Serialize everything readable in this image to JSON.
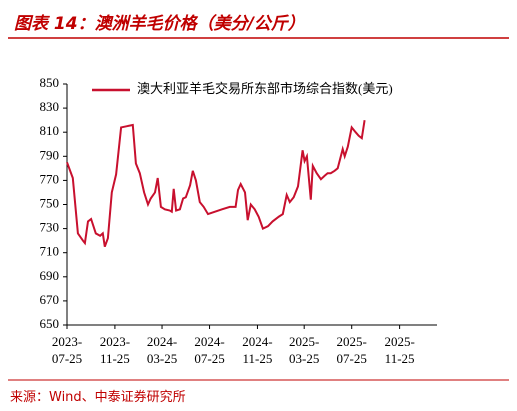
{
  "title": "图表 14：澳洲羊毛价格（美分/公斤）",
  "source": "来源：Wind、中泰证券研究所",
  "chart_data": {
    "type": "line",
    "x": [
      "2023-07-25",
      "2023-08-09",
      "2023-08-22",
      "2023-09-04",
      "2023-09-09",
      "2023-09-17",
      "2023-09-25",
      "2023-10-07",
      "2023-10-18",
      "2023-10-25",
      "2023-10-30",
      "2023-11-07",
      "2023-11-17",
      "2023-11-28",
      "2023-12-11",
      "2023-12-26",
      "2024-01-10",
      "2024-01-18",
      "2024-01-28",
      "2024-02-08",
      "2024-02-18",
      "2024-02-25",
      "2024-03-07",
      "2024-03-14",
      "2024-03-22",
      "2024-04-01",
      "2024-04-14",
      "2024-04-19",
      "2024-04-24",
      "2024-04-30",
      "2024-05-10",
      "2024-05-18",
      "2024-05-25",
      "2024-06-05",
      "2024-06-12",
      "2024-06-20",
      "2024-06-30",
      "2024-07-10",
      "2024-07-21",
      "2024-08-08",
      "2024-08-26",
      "2024-09-15",
      "2024-09-30",
      "2024-10-06",
      "2024-10-13",
      "2024-10-24",
      "2024-10-31",
      "2024-11-08",
      "2024-11-18",
      "2024-11-28",
      "2024-12-09",
      "2024-12-22",
      "2025-01-03",
      "2025-01-19",
      "2025-01-29",
      "2025-02-08",
      "2025-02-16",
      "2025-02-26",
      "2025-03-09",
      "2025-03-21",
      "2025-03-26",
      "2025-04-01",
      "2025-04-11",
      "2025-04-16",
      "2025-04-26",
      "2025-05-07",
      "2025-05-17",
      "2025-05-24",
      "2025-06-01",
      "2025-06-11",
      "2025-06-19",
      "2025-07-02",
      "2025-07-07",
      "2025-07-15",
      "2025-07-25",
      "2025-08-04",
      "2025-08-12",
      "2025-08-20",
      "2025-08-27"
    ],
    "series": [
      {
        "name": "澳大利亚羊毛交易所东部市场综合指数(美元)",
        "color": "#c8102e",
        "values": [
          785,
          772,
          726,
          720,
          718,
          736,
          738,
          726,
          724,
          726,
          715,
          722,
          760,
          775,
          814,
          815,
          816,
          784,
          776,
          760,
          750,
          755,
          760,
          772,
          748,
          746,
          745,
          744,
          763,
          745,
          746,
          755,
          756,
          766,
          778,
          770,
          752,
          748,
          742,
          744,
          746,
          748,
          748,
          762,
          767,
          760,
          737,
          750,
          746,
          740,
          730,
          732,
          736,
          740,
          742,
          758,
          752,
          756,
          765,
          795,
          786,
          790,
          754,
          782,
          776,
          771,
          774,
          776,
          776,
          778,
          780,
          796,
          790,
          798,
          814,
          810,
          807,
          805,
          820
        ]
      }
    ],
    "xlim": [
      "2023-07-25",
      "2026-03-01"
    ],
    "xticks": [
      {
        "value": "2023-07-25",
        "label": "2023-\n07-25"
      },
      {
        "value": "2023-11-25",
        "label": "2023-\n11-25"
      },
      {
        "value": "2024-03-25",
        "label": "2024-\n03-25"
      },
      {
        "value": "2024-07-25",
        "label": "2024-\n07-25"
      },
      {
        "value": "2024-11-25",
        "label": "2024-\n11-25"
      },
      {
        "value": "2025-03-25",
        "label": "2025-\n03-25"
      },
      {
        "value": "2025-07-25",
        "label": "2025-\n07-25"
      },
      {
        "value": "2025-11-25",
        "label": "2025-\n11-25"
      }
    ],
    "ylim": [
      650,
      850
    ],
    "yticks": [
      650,
      670,
      690,
      710,
      730,
      750,
      770,
      790,
      810,
      830,
      850
    ],
    "legend": "top"
  }
}
